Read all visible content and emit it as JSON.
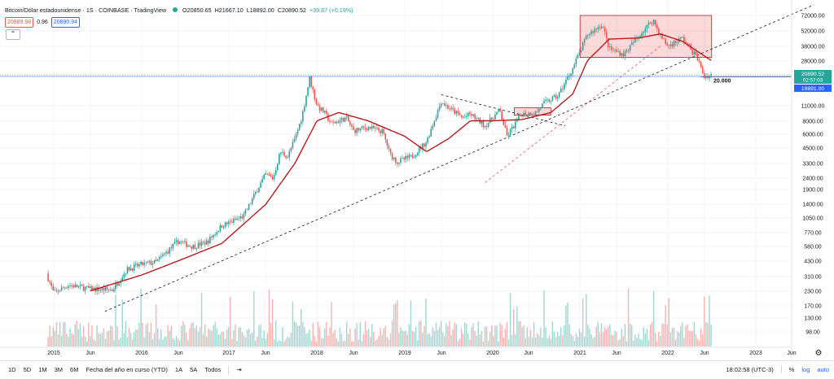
{
  "header": {
    "symbol": "Bitcoin/Dólar estadounidense · 1S · COINBASE · TradingView",
    "open": "O20850.65",
    "high": "H21667.10",
    "low": "L18892.00",
    "close": "C20890.52",
    "change": "+39.87 (+0.19%)",
    "bid": "20889.98",
    "spread": "0.96",
    "ask": "20890.94",
    "collapse_label": "⌃"
  },
  "price_axis": {
    "labels": [
      "72000.00",
      "52000.00",
      "38000.00",
      "28000.00",
      "20000.00",
      "11000.00",
      "8000.00",
      "6000.00",
      "4500.00",
      "3300.00",
      "2400.00",
      "1900.00",
      "1400.00",
      "1050.00",
      "770.00",
      "580.00",
      "430.00",
      "310.00",
      "230.00",
      "170.00",
      "130.00",
      "98.00"
    ],
    "last_price": "20890.52",
    "countdown": "02:57:03",
    "low_marker": "19891.00",
    "annotation": "20.000"
  },
  "time_axis": {
    "labels": [
      "2015",
      "Jun",
      "2016",
      "Jun",
      "2017",
      "Jun",
      "2018",
      "Jun",
      "2019",
      "Jun",
      "2020",
      "Jun",
      "2021",
      "Jun",
      "2022",
      "Jun",
      "2023",
      "Jun"
    ]
  },
  "bottom_bar": {
    "ranges": [
      "1D",
      "5D",
      "1M",
      "3M",
      "6M",
      "Fecha del año en curso (YTD)",
      "1A",
      "5A",
      "Todos"
    ],
    "time": "18:02:58 (UTC-3)",
    "percent": "%",
    "log": "log",
    "auto": "auto"
  },
  "chart_data": {
    "type": "candlestick",
    "symbol": "BTCUSD",
    "interval": "1S",
    "scale": "log",
    "ylim": [
      85,
      80000
    ],
    "xlim": [
      "2014-11",
      "2023-09"
    ],
    "colors": {
      "up": "#26a69a",
      "down": "#ef5350",
      "ma": "#b71c1c"
    },
    "price_path": [
      [
        "2014-12",
        330
      ],
      [
        "2015-01",
        220
      ],
      [
        "2015-03",
        260
      ],
      [
        "2015-06",
        240
      ],
      [
        "2015-09",
        235
      ],
      [
        "2015-11",
        360
      ],
      [
        "2016-01",
        400
      ],
      [
        "2016-03",
        420
      ],
      [
        "2016-06",
        650
      ],
      [
        "2016-08",
        580
      ],
      [
        "2016-10",
        640
      ],
      [
        "2016-12",
        900
      ],
      [
        "2017-01",
        950
      ],
      [
        "2017-03",
        1100
      ],
      [
        "2017-05",
        2000
      ],
      [
        "2017-06",
        2600
      ],
      [
        "2017-07",
        2400
      ],
      [
        "2017-08",
        4200
      ],
      [
        "2017-09",
        3800
      ],
      [
        "2017-10",
        5500
      ],
      [
        "2017-11",
        9000
      ],
      [
        "2017-12",
        19500
      ],
      [
        "2018-01",
        11000
      ],
      [
        "2018-02",
        9500
      ],
      [
        "2018-03",
        7500
      ],
      [
        "2018-05",
        8500
      ],
      [
        "2018-06",
        6500
      ],
      [
        "2018-08",
        7000
      ],
      [
        "2018-10",
        6400
      ],
      [
        "2018-11",
        4000
      ],
      [
        "2018-12",
        3400
      ],
      [
        "2019-02",
        3800
      ],
      [
        "2019-04",
        5200
      ],
      [
        "2019-06",
        12000
      ],
      [
        "2019-07",
        10500
      ],
      [
        "2019-09",
        8500
      ],
      [
        "2019-10",
        9200
      ],
      [
        "2019-12",
        7200
      ],
      [
        "2020-02",
        10000
      ],
      [
        "2020-03",
        5800
      ],
      [
        "2020-05",
        9200
      ],
      [
        "2020-07",
        9500
      ],
      [
        "2020-08",
        11500
      ],
      [
        "2020-10",
        13500
      ],
      [
        "2020-12",
        24000
      ],
      [
        "2021-01",
        34000
      ],
      [
        "2021-02",
        48000
      ],
      [
        "2021-04",
        60000
      ],
      [
        "2021-05",
        36000
      ],
      [
        "2021-07",
        32000
      ],
      [
        "2021-09",
        47000
      ],
      [
        "2021-11",
        66000
      ],
      [
        "2021-12",
        47000
      ],
      [
        "2022-01",
        38000
      ],
      [
        "2022-03",
        45000
      ],
      [
        "2022-05",
        30000
      ],
      [
        "2022-06",
        20000
      ],
      [
        "2022-07",
        20890
      ]
    ],
    "ma_path": [
      [
        "2015-06",
        230
      ],
      [
        "2016-01",
        320
      ],
      [
        "2016-06",
        430
      ],
      [
        "2016-12",
        620
      ],
      [
        "2017-06",
        1400
      ],
      [
        "2017-10",
        3300
      ],
      [
        "2018-01",
        8000
      ],
      [
        "2018-04",
        9500
      ],
      [
        "2018-08",
        8000
      ],
      [
        "2019-01",
        5800
      ],
      [
        "2019-04",
        4200
      ],
      [
        "2019-07",
        5500
      ],
      [
        "2019-10",
        8000
      ],
      [
        "2020-01",
        8000
      ],
      [
        "2020-05",
        8200
      ],
      [
        "2020-09",
        9500
      ],
      [
        "2020-12",
        14000
      ],
      [
        "2021-02",
        28000
      ],
      [
        "2021-05",
        44000
      ],
      [
        "2021-09",
        45000
      ],
      [
        "2021-12",
        49000
      ],
      [
        "2022-03",
        42000
      ],
      [
        "2022-07",
        28000
      ]
    ],
    "annotations": [
      {
        "type": "rectangle",
        "from": [
          "2021-01",
          30000
        ],
        "to": [
          "2022-07",
          72000
        ],
        "color": "#ef5350"
      },
      {
        "type": "rectangle",
        "from": [
          "2020-04",
          9000
        ],
        "to": [
          "2020-09",
          10500
        ],
        "color": "#ef5350"
      },
      {
        "type": "trendline",
        "from": [
          "2015-08",
          150
        ],
        "to": [
          "2023-09",
          90000
        ],
        "style": "dashed"
      },
      {
        "type": "trendline",
        "from": [
          "2019-06",
          13800
        ],
        "to": [
          "2020-11",
          7200
        ],
        "style": "dashed"
      },
      {
        "type": "trendline",
        "from": [
          "2019-12",
          2200
        ],
        "to": [
          "2021-12",
          38000
        ],
        "style": "dashed",
        "color": "#ef5350"
      },
      {
        "type": "hline",
        "price": 20000,
        "label": "20.000"
      }
    ]
  }
}
